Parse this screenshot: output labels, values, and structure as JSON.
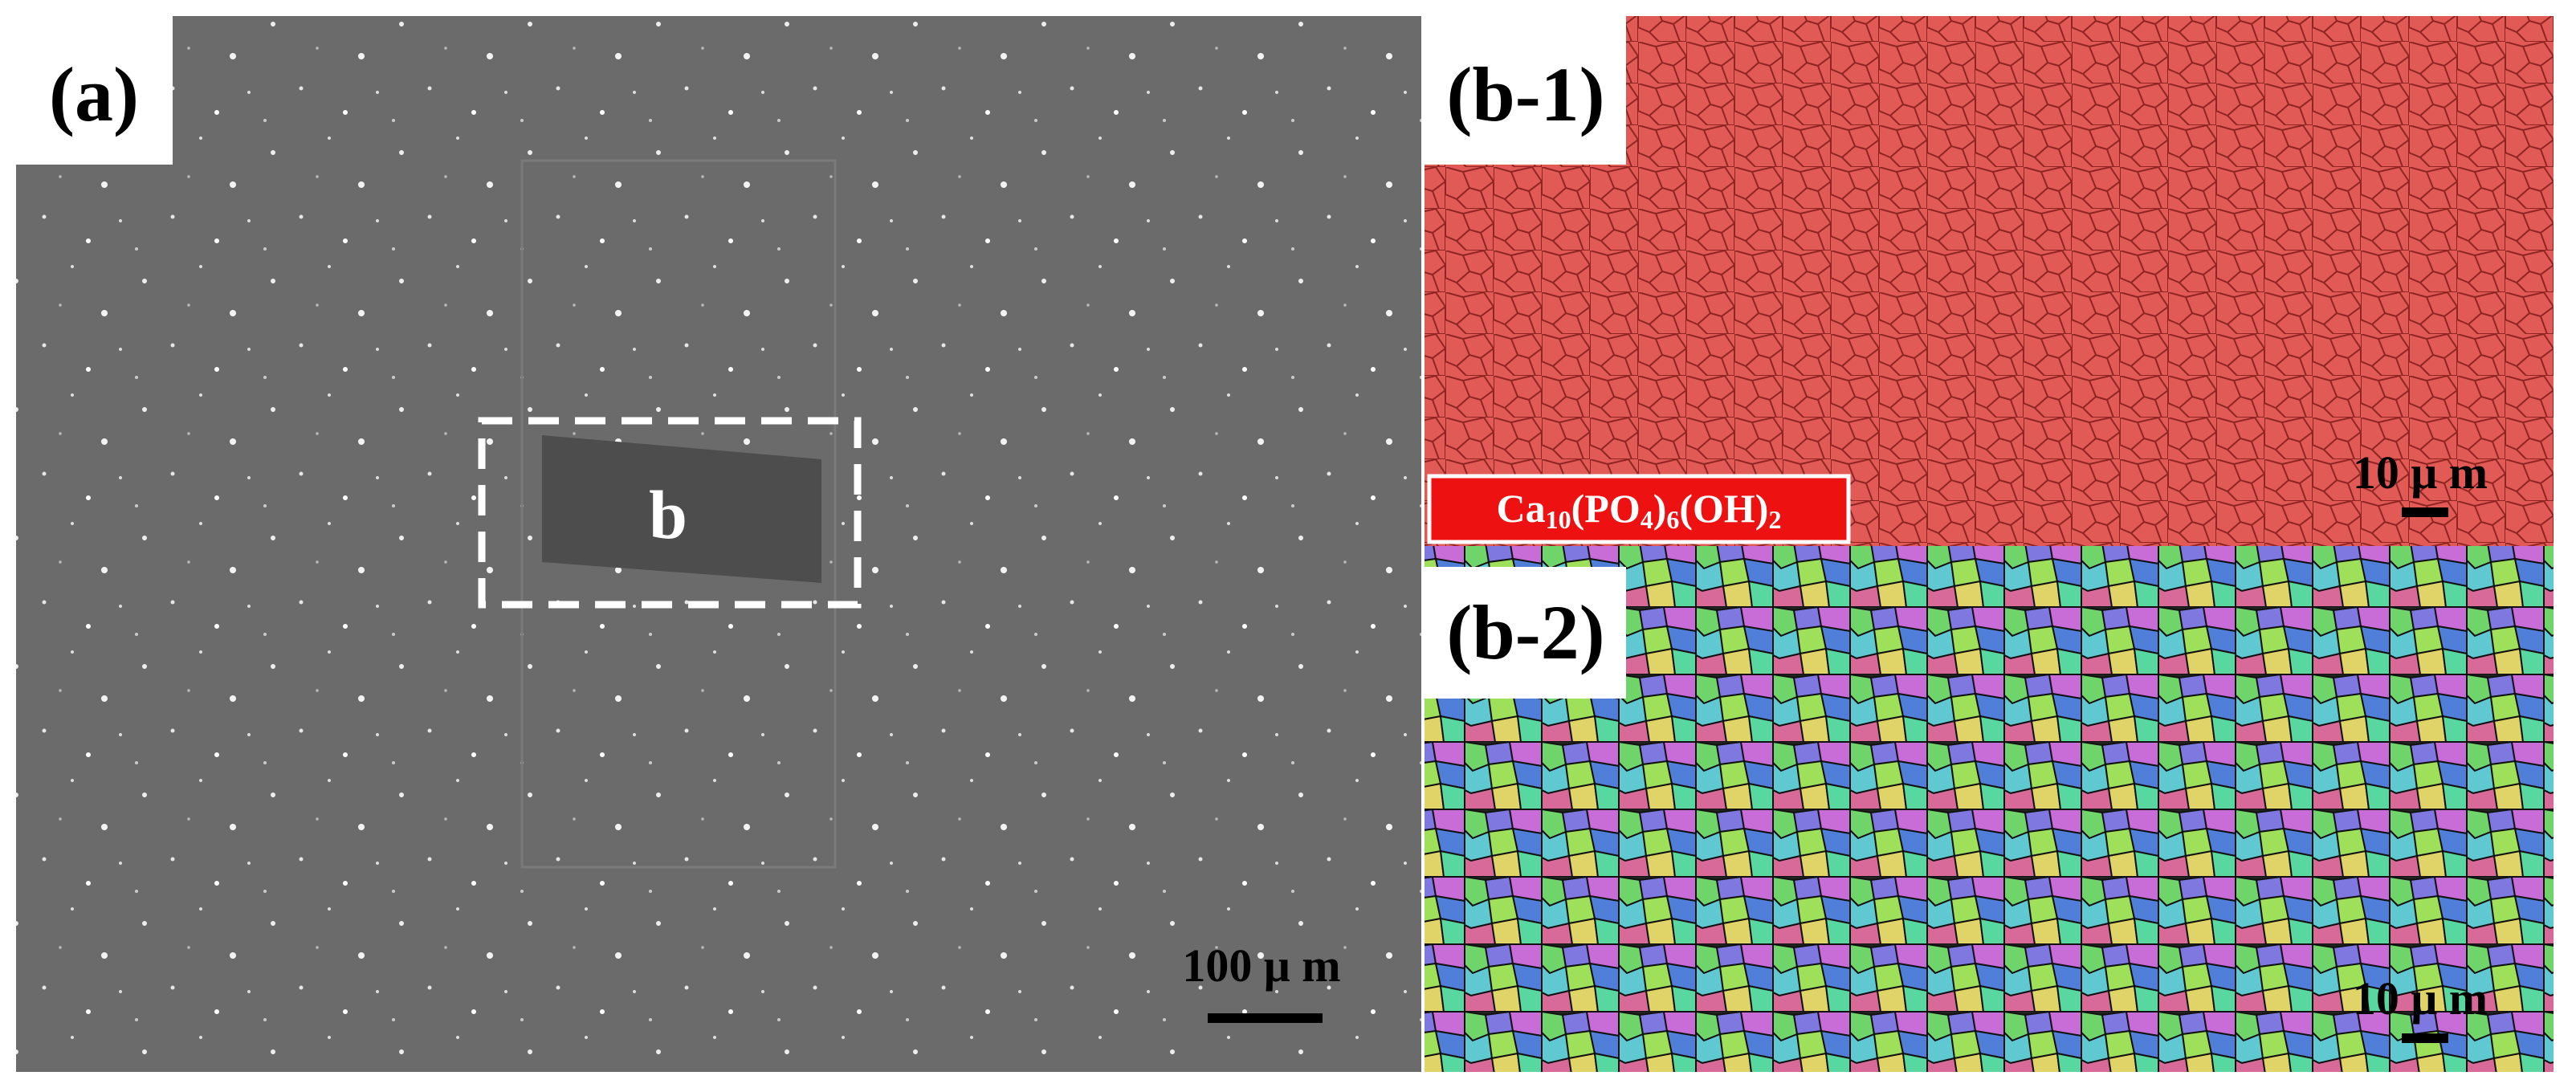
{
  "panels": [
    {
      "label": "(a)",
      "box_label": "b",
      "scale_bar": "100 μ m"
    },
    {
      "label": "(b-1)",
      "scale_bar": "10 μ m",
      "phase_label": [
        "Ca",
        "10",
        "(PO",
        "4",
        ")",
        "6",
        "(OH)",
        "2"
      ]
    },
    {
      "label": "(b-2)",
      "scale_bar": "10 μ m"
    }
  ]
}
